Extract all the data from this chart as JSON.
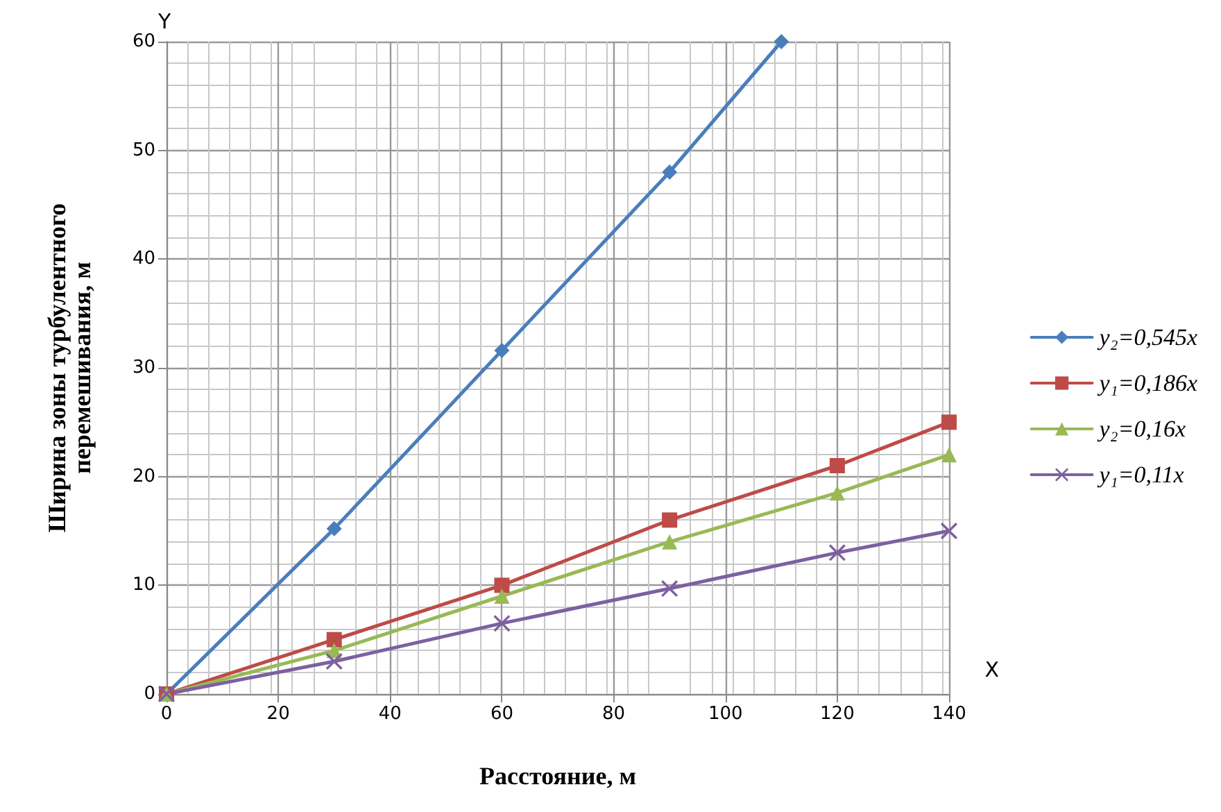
{
  "chart_data": {
    "type": "line",
    "xlabel": "Расстояние, м",
    "ylabel": "Ширина зоны турбулентного\nперемешивания, м",
    "annotations": [
      "Y",
      "X"
    ],
    "xlim": [
      0,
      140
    ],
    "xticks": [
      0,
      20,
      40,
      60,
      80,
      100,
      120,
      140
    ],
    "ylim": [
      0,
      60
    ],
    "yticks": [
      0,
      10,
      20,
      30,
      40,
      50,
      60
    ],
    "grid": true,
    "legend": "right",
    "line_style": "solid",
    "series": [
      {
        "name": "y₂=0,545x",
        "color": "#4a7ebb",
        "marker": "diamond",
        "x": [
          0,
          30,
          60,
          90,
          110
        ],
        "values": [
          0,
          15.2,
          31.6,
          48,
          60
        ]
      },
      {
        "name": "y₁=0,186x",
        "color": "#be4b48",
        "marker": "square",
        "x": [
          0,
          30,
          60,
          90,
          120,
          140
        ],
        "values": [
          0,
          5,
          10,
          16,
          21,
          25
        ]
      },
      {
        "name": "y₂=0,16x",
        "color": "#98b954",
        "marker": "triangle",
        "x": [
          0,
          30,
          60,
          90,
          120,
          140
        ],
        "values": [
          0,
          4,
          9,
          14,
          18.5,
          22
        ]
      },
      {
        "name": "y₁=0,11x",
        "color": "#7d60a0",
        "marker": "cross",
        "x": [
          0,
          30,
          60,
          90,
          120,
          140
        ],
        "values": [
          0,
          3,
          6.5,
          9.7,
          13,
          15
        ]
      }
    ]
  }
}
